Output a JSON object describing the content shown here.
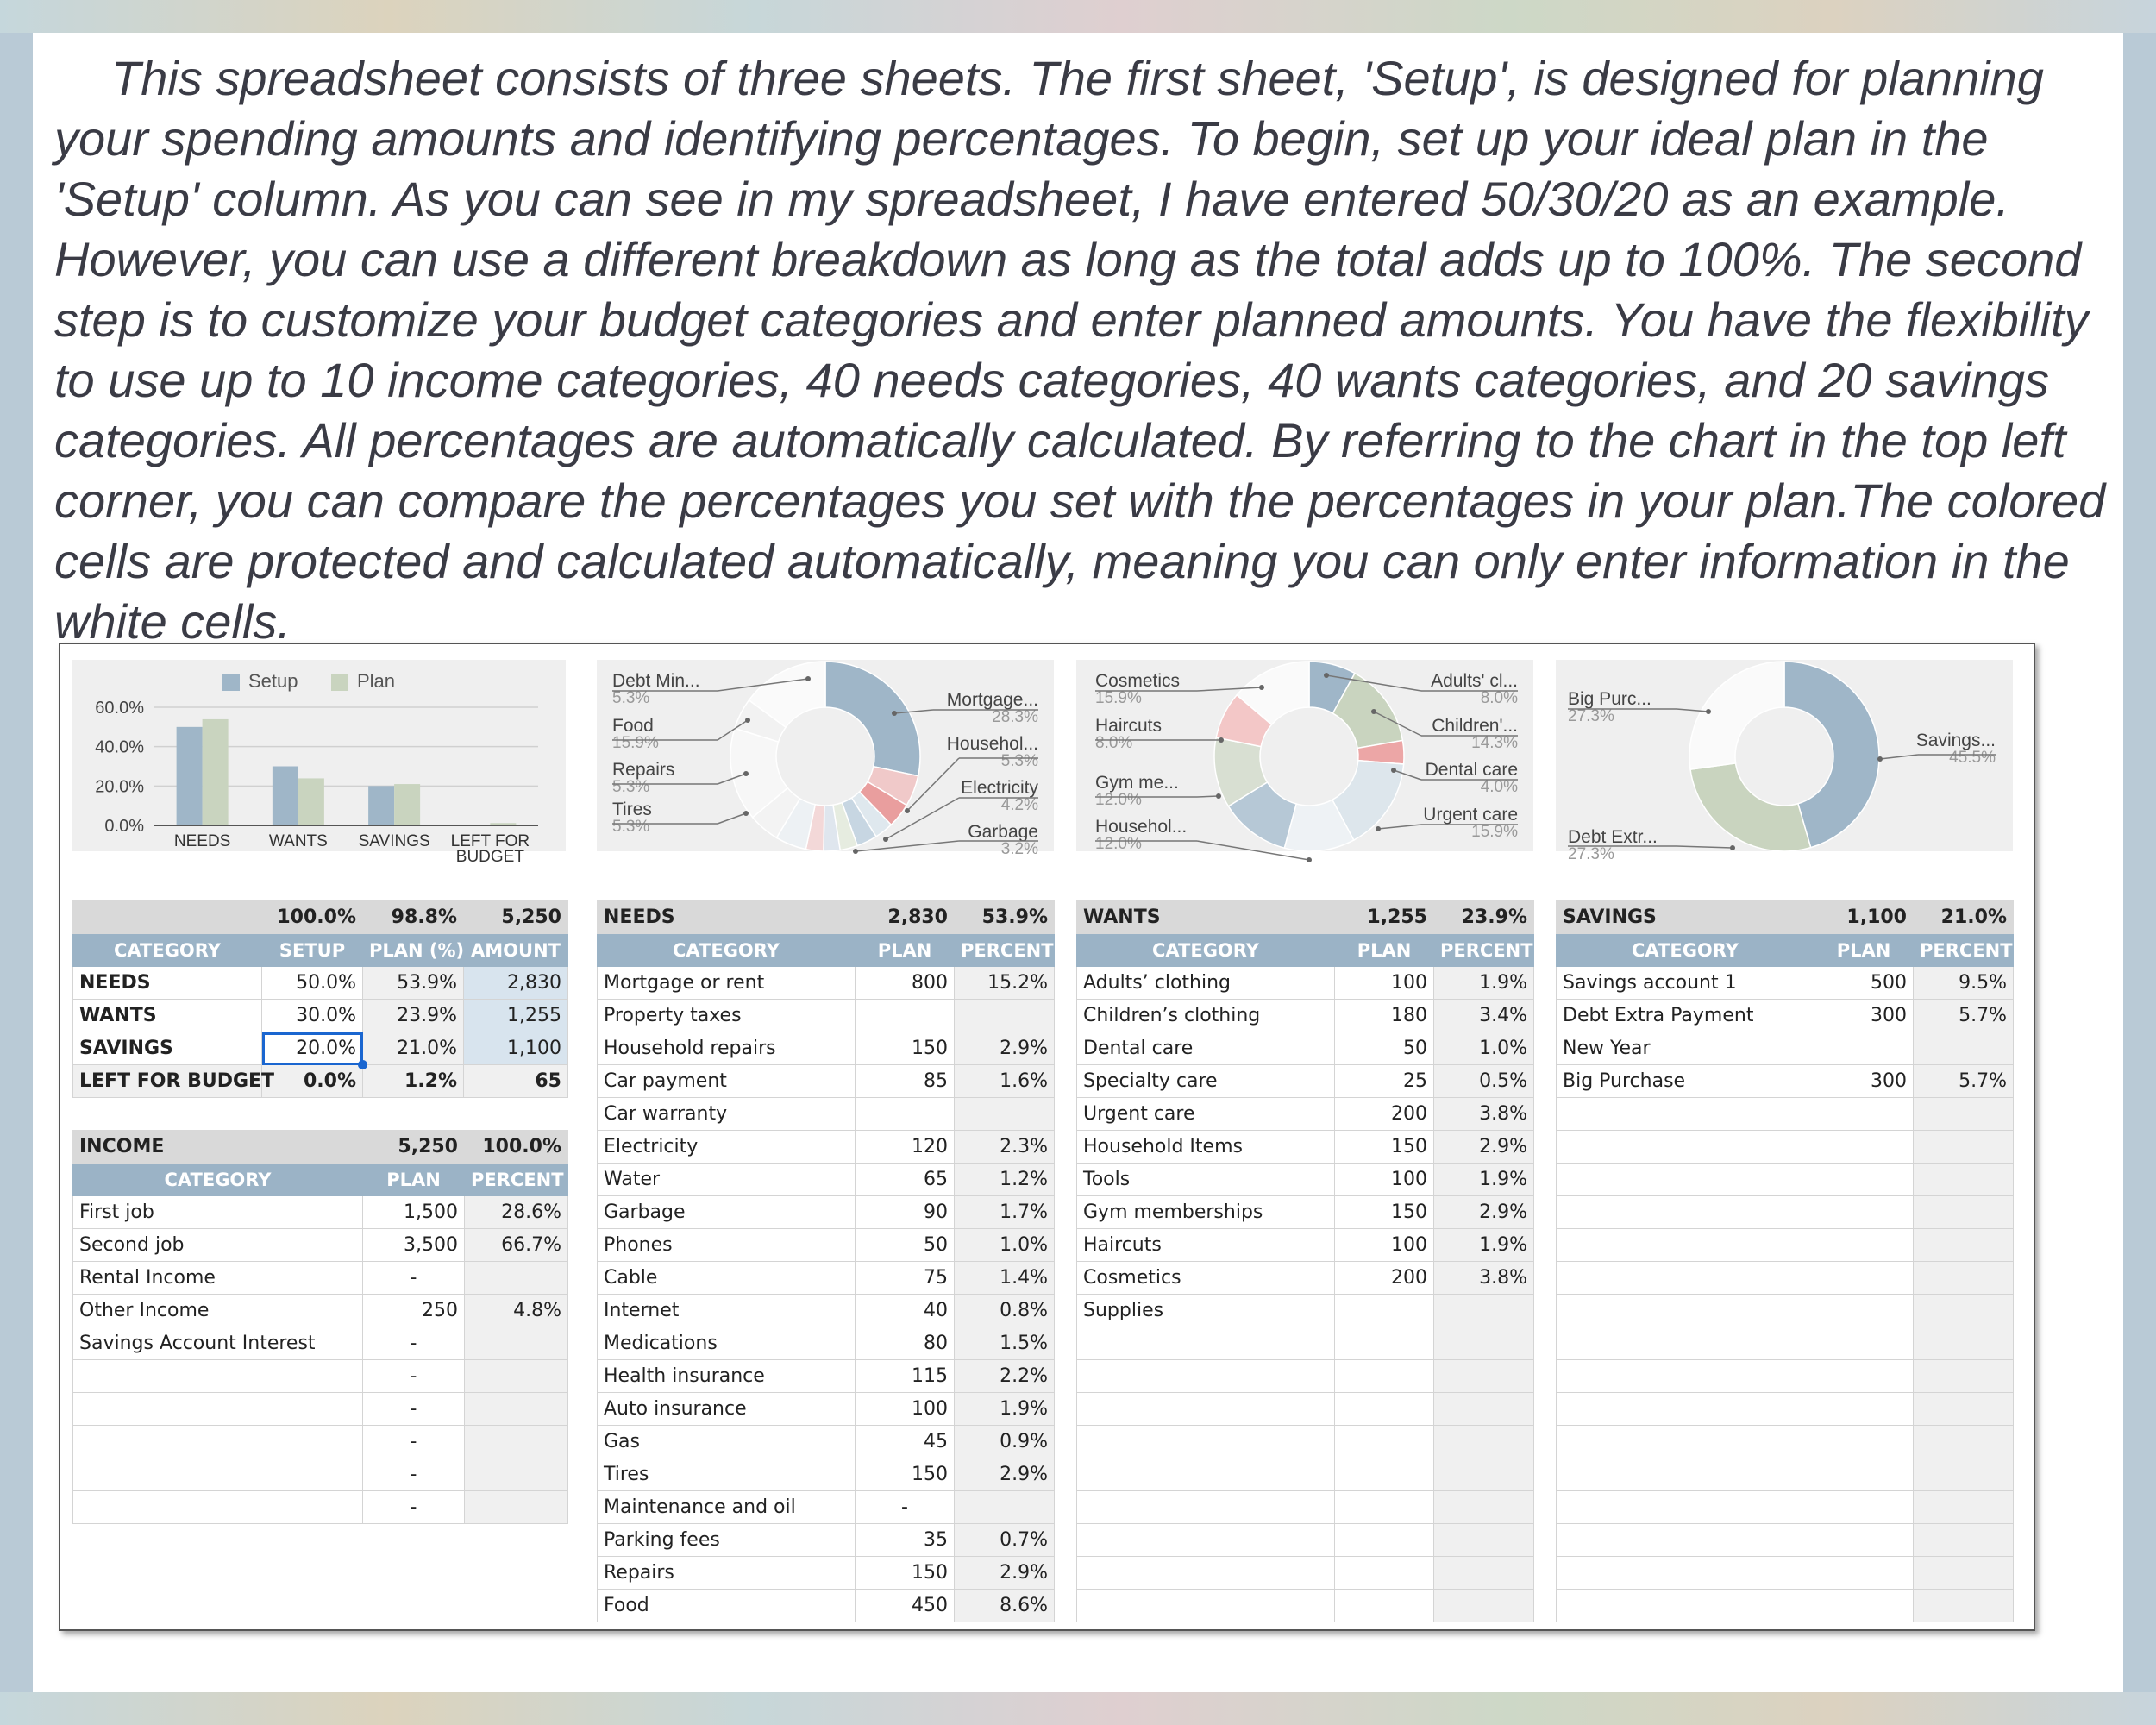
{
  "intro": "This spreadsheet consists of three sheets. The first sheet, 'Setup', is designed for planning your spending amounts and identifying percentages. To begin, set up your ideal plan in the 'Setup' column. As you can see in my spreadsheet, I have entered 50/30/20 as an example. However, you can use a different breakdown as long as the total adds up to 100%. The second step is to customize your budget categories and enter planned amounts. You have the flexibility to use up to 10 income categories, 40 needs categories, 40 wants categories, and 20 savings categories. All percentages are automatically calculated. By referring to the chart in the top left corner, you can compare the percentages you set with the percentages in your plan.The colored cells are protected and calculated automatically, meaning you can only enter information in the white cells.",
  "colors": {
    "setup": "#9fb6c8",
    "plan": "#c9d4bf",
    "header_bg": "#d9d9d9",
    "column_header_bg": "#9bb3c6",
    "calc_bg": "#f0f0f0"
  },
  "chart_data": [
    {
      "type": "bar",
      "categories": [
        "NEEDS",
        "WANTS",
        "SAVINGS",
        "LEFT FOR BUDGET"
      ],
      "series": [
        {
          "name": "Setup",
          "values": [
            50.0,
            30.0,
            20.0,
            0.0
          ]
        },
        {
          "name": "Plan",
          "values": [
            53.9,
            23.9,
            21.0,
            1.2
          ]
        }
      ],
      "yticks": [
        "60.0%",
        "40.0%",
        "20.0%",
        "0.0%"
      ],
      "ylim": [
        0,
        60
      ],
      "legend": "top"
    },
    {
      "type": "pie",
      "labels": [
        {
          "name": "Debt Min...",
          "pct": "5.3%"
        },
        {
          "name": "Food",
          "pct": "15.9%"
        },
        {
          "name": "Repairs",
          "pct": "5.3%"
        },
        {
          "name": "Tires",
          "pct": "5.3%"
        },
        {
          "name": "Mortgage...",
          "pct": "28.3%"
        },
        {
          "name": "Househol...",
          "pct": "5.3%"
        },
        {
          "name": "Electricity",
          "pct": "4.2%"
        },
        {
          "name": "Garbage",
          "pct": "3.2%"
        }
      ]
    },
    {
      "type": "pie",
      "labels": [
        {
          "name": "Cosmetics",
          "pct": "15.9%"
        },
        {
          "name": "Haircuts",
          "pct": "8.0%"
        },
        {
          "name": "Gym me...",
          "pct": "12.0%"
        },
        {
          "name": "Househol...",
          "pct": "12.0%"
        },
        {
          "name": "Adults' cl...",
          "pct": "8.0%"
        },
        {
          "name": "Children'...",
          "pct": "14.3%"
        },
        {
          "name": "Dental care",
          "pct": "4.0%"
        },
        {
          "name": "Urgent care",
          "pct": "15.9%"
        }
      ]
    },
    {
      "type": "pie",
      "labels": [
        {
          "name": "Big Purc...",
          "pct": "27.3%"
        },
        {
          "name": "Debt Extr...",
          "pct": "27.3%"
        },
        {
          "name": "Savings...",
          "pct": "45.5%"
        }
      ]
    }
  ],
  "summary": {
    "totals": [
      "100.0%",
      "98.8%",
      "5,250"
    ],
    "headers": [
      "CATEGORY",
      "SETUP",
      "PLAN (%)",
      "AMOUNT"
    ],
    "rows": [
      [
        "NEEDS",
        "50.0%",
        "53.9%",
        "2,830"
      ],
      [
        "WANTS",
        "30.0%",
        "23.9%",
        "1,255"
      ],
      [
        "SAVINGS",
        "20.0%",
        "21.0%",
        "1,100"
      ],
      [
        "LEFT FOR BUDGET",
        "0.0%",
        "1.2%",
        "65"
      ]
    ]
  },
  "income": {
    "title": "INCOME",
    "total": "5,250",
    "percent": "100.0%",
    "headers": [
      "CATEGORY",
      "PLAN",
      "PERCENT"
    ],
    "rows": [
      [
        "First job",
        "1,500",
        "28.6%"
      ],
      [
        "Second job",
        "3,500",
        "66.7%"
      ],
      [
        "Rental Income",
        "-",
        ""
      ],
      [
        "Other Income",
        "250",
        "4.8%"
      ],
      [
        "Savings Account Interest",
        "-",
        ""
      ],
      [
        "",
        "-",
        ""
      ],
      [
        "",
        "-",
        ""
      ],
      [
        "",
        "-",
        ""
      ],
      [
        "",
        "-",
        ""
      ],
      [
        "",
        "-",
        ""
      ]
    ]
  },
  "needs": {
    "title": "NEEDS",
    "total": "2,830",
    "percent": "53.9%",
    "headers": [
      "CATEGORY",
      "PLAN",
      "PERCENT"
    ],
    "rows": [
      [
        "Mortgage or rent",
        "800",
        "15.2%"
      ],
      [
        "Property taxes",
        "",
        ""
      ],
      [
        "Household repairs",
        "150",
        "2.9%"
      ],
      [
        "Car payment",
        "85",
        "1.6%"
      ],
      [
        "Car warranty",
        "",
        ""
      ],
      [
        "Electricity",
        "120",
        "2.3%"
      ],
      [
        "Water",
        "65",
        "1.2%"
      ],
      [
        "Garbage",
        "90",
        "1.7%"
      ],
      [
        "Phones",
        "50",
        "1.0%"
      ],
      [
        "Cable",
        "75",
        "1.4%"
      ],
      [
        "Internet",
        "40",
        "0.8%"
      ],
      [
        "Medications",
        "80",
        "1.5%"
      ],
      [
        "Health insurance",
        "115",
        "2.2%"
      ],
      [
        "Auto insurance",
        "100",
        "1.9%"
      ],
      [
        "Gas",
        "45",
        "0.9%"
      ],
      [
        "Tires",
        "150",
        "2.9%"
      ],
      [
        "Maintenance and oil",
        "-",
        ""
      ],
      [
        "Parking fees",
        "35",
        "0.7%"
      ],
      [
        "Repairs",
        "150",
        "2.9%"
      ],
      [
        "Food",
        "450",
        "8.6%"
      ]
    ]
  },
  "wants": {
    "title": "WANTS",
    "total": "1,255",
    "percent": "23.9%",
    "headers": [
      "CATEGORY",
      "PLAN",
      "PERCENT"
    ],
    "rows": [
      [
        "Adults’ clothing",
        "100",
        "1.9%"
      ],
      [
        "Children’s clothing",
        "180",
        "3.4%"
      ],
      [
        "Dental care",
        "50",
        "1.0%"
      ],
      [
        "Specialty care",
        "25",
        "0.5%"
      ],
      [
        "Urgent care",
        "200",
        "3.8%"
      ],
      [
        "Household Items",
        "150",
        "2.9%"
      ],
      [
        "Tools",
        "100",
        "1.9%"
      ],
      [
        "Gym memberships",
        "150",
        "2.9%"
      ],
      [
        "Haircuts",
        "100",
        "1.9%"
      ],
      [
        "Cosmetics",
        "200",
        "3.8%"
      ],
      [
        "Supplies",
        "",
        ""
      ],
      [
        "",
        "",
        ""
      ],
      [
        "",
        "",
        ""
      ],
      [
        "",
        "",
        ""
      ],
      [
        "",
        "",
        ""
      ],
      [
        "",
        "",
        ""
      ],
      [
        "",
        "",
        ""
      ],
      [
        "",
        "",
        ""
      ],
      [
        "",
        "",
        ""
      ],
      [
        "",
        "",
        ""
      ]
    ]
  },
  "savings": {
    "title": "SAVINGS",
    "total": "1,100",
    "percent": "21.0%",
    "headers": [
      "CATEGORY",
      "PLAN",
      "PERCENT"
    ],
    "rows": [
      [
        "Savings account 1",
        "500",
        "9.5%"
      ],
      [
        "Debt Extra Payment",
        "300",
        "5.7%"
      ],
      [
        "New Year",
        "",
        ""
      ],
      [
        "Big Purchase",
        "300",
        "5.7%"
      ],
      [
        "",
        "",
        ""
      ],
      [
        "",
        "",
        ""
      ],
      [
        "",
        "",
        ""
      ],
      [
        "",
        "",
        ""
      ],
      [
        "",
        "",
        ""
      ],
      [
        "",
        "",
        ""
      ],
      [
        "",
        "",
        ""
      ],
      [
        "",
        "",
        ""
      ],
      [
        "",
        "",
        ""
      ],
      [
        "",
        "",
        ""
      ],
      [
        "",
        "",
        ""
      ],
      [
        "",
        "",
        ""
      ],
      [
        "",
        "",
        ""
      ],
      [
        "",
        "",
        ""
      ],
      [
        "",
        "",
        ""
      ],
      [
        "",
        "",
        ""
      ]
    ]
  }
}
